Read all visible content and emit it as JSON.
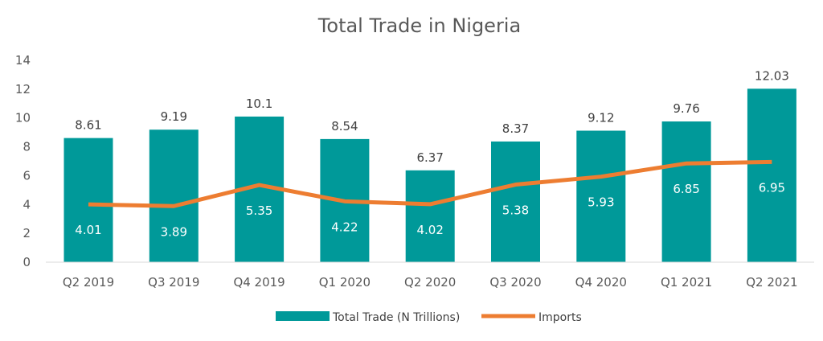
{
  "chart_data": {
    "type": "bar",
    "title": "Total Trade in Nigeria",
    "xlabel": "",
    "ylabel": "",
    "ylim": [
      0,
      14
    ],
    "yticks": [
      "0",
      "2",
      "4",
      "6",
      "8",
      "10",
      "12",
      "14"
    ],
    "categories": [
      "Q2 2019",
      "Q3 2019",
      "Q4 2019",
      "Q1 2020",
      "Q2 2020",
      "Q3 2020",
      "Q4 2020",
      "Q1 2021",
      "Q2 2021"
    ],
    "series": [
      {
        "name": "Total Trade (N Trillions)",
        "type": "bar",
        "color": "#009999",
        "values": [
          8.61,
          9.19,
          10.1,
          8.54,
          6.37,
          8.37,
          9.12,
          9.76,
          12.03
        ],
        "labels": [
          "8.61",
          "9.19",
          "10.1",
          "8.54",
          "6.37",
          "8.37",
          "9.12",
          "9.76",
          "12.03"
        ]
      },
      {
        "name": "Imports",
        "type": "line",
        "color": "#ED7D31",
        "values": [
          4.01,
          3.89,
          5.35,
          4.22,
          4.02,
          5.38,
          5.93,
          6.85,
          6.95
        ],
        "labels": [
          "4.01",
          "3.89",
          "5.35",
          "4.22",
          "4.02",
          "5.38",
          "5.93",
          "6.85",
          "6.95"
        ]
      }
    ],
    "grid": false,
    "legend": "bottom"
  }
}
